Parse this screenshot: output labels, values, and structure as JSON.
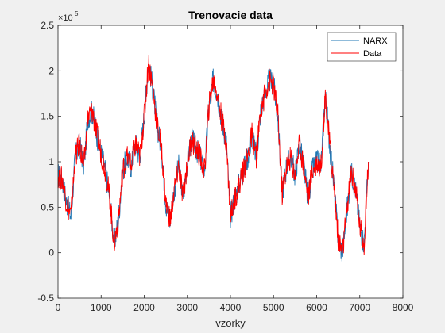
{
  "chart_data": {
    "type": "line",
    "title": "Trenovacie data",
    "xlabel": "vzorky",
    "ylabel": "",
    "y_exponent_label": "×10",
    "y_exponent_power": "5",
    "xlim": [
      0,
      8000
    ],
    "ylim": [
      -0.5,
      2.5
    ],
    "x_ticks": [
      "0",
      "1000",
      "2000",
      "3000",
      "4000",
      "5000",
      "6000",
      "7000",
      "8000"
    ],
    "y_ticks": [
      "-0.5",
      "0",
      "0.5",
      "1",
      "1.5",
      "2",
      "2.5"
    ],
    "grid": false,
    "legend_position": "top-right",
    "series": [
      {
        "name": "NARX",
        "color": "#1f77b4",
        "x": [
          0,
          100,
          200,
          300,
          400,
          500,
          600,
          700,
          800,
          900,
          1000,
          1100,
          1200,
          1300,
          1400,
          1500,
          1600,
          1700,
          1800,
          1900,
          2000,
          2100,
          2200,
          2300,
          2400,
          2500,
          2600,
          2700,
          2800,
          2900,
          3000,
          3100,
          3200,
          3300,
          3400,
          3500,
          3600,
          3700,
          3800,
          3900,
          4000,
          4100,
          4200,
          4300,
          4400,
          4500,
          4600,
          4700,
          4800,
          4900,
          5000,
          5100,
          5200,
          5300,
          5400,
          5500,
          5600,
          5700,
          5800,
          5900,
          6000,
          6100,
          6200,
          6300,
          6400,
          6500,
          6600,
          6700,
          6800,
          6900,
          7000,
          7100,
          7200
        ],
        "y": [
          0.85,
          0.8,
          0.55,
          0.4,
          1.05,
          1.2,
          0.95,
          1.5,
          1.55,
          1.3,
          1.1,
          0.9,
          0.6,
          0.1,
          0.35,
          0.9,
          1.05,
          0.95,
          1.2,
          1.05,
          1.5,
          2.1,
          1.8,
          1.4,
          1.15,
          0.55,
          0.35,
          0.7,
          0.95,
          0.6,
          1.0,
          1.25,
          1.15,
          1.05,
          0.9,
          1.6,
          1.9,
          1.75,
          1.45,
          1.25,
          0.4,
          0.6,
          0.75,
          0.9,
          1.05,
          1.3,
          1.05,
          1.55,
          1.75,
          1.9,
          1.85,
          1.5,
          0.65,
          0.95,
          1.05,
          0.85,
          1.2,
          0.95,
          0.6,
          0.9,
          1.0,
          0.95,
          1.75,
          1.2,
          0.75,
          0.15,
          0.0,
          0.45,
          0.9,
          0.7,
          0.3,
          0.1,
          1.0
        ]
      },
      {
        "name": "Data",
        "color": "#ff0000",
        "x": [
          0,
          100,
          200,
          300,
          400,
          500,
          600,
          700,
          800,
          900,
          1000,
          1100,
          1200,
          1300,
          1400,
          1500,
          1600,
          1700,
          1800,
          1900,
          2000,
          2100,
          2200,
          2300,
          2400,
          2500,
          2600,
          2700,
          2800,
          2900,
          3000,
          3100,
          3200,
          3300,
          3400,
          3500,
          3600,
          3700,
          3800,
          3900,
          4000,
          4100,
          4200,
          4300,
          4400,
          4500,
          4600,
          4700,
          4800,
          4900,
          5000,
          5100,
          5200,
          5300,
          5400,
          5500,
          5600,
          5700,
          5800,
          5900,
          6000,
          6100,
          6200,
          6300,
          6400,
          6500,
          6600,
          6700,
          6800,
          6900,
          7000,
          7100,
          7200
        ],
        "y": [
          0.85,
          0.8,
          0.55,
          0.4,
          1.05,
          1.2,
          0.95,
          1.5,
          1.55,
          1.3,
          1.1,
          0.9,
          0.6,
          0.1,
          0.35,
          0.9,
          1.05,
          0.95,
          1.2,
          1.05,
          1.5,
          2.1,
          1.8,
          1.4,
          1.15,
          0.55,
          0.35,
          0.7,
          0.95,
          0.6,
          1.0,
          1.25,
          1.15,
          1.05,
          0.9,
          1.6,
          1.9,
          1.75,
          1.45,
          1.25,
          0.4,
          0.6,
          0.75,
          0.9,
          1.05,
          1.3,
          1.05,
          1.55,
          1.75,
          1.9,
          1.85,
          1.5,
          0.65,
          0.95,
          1.05,
          0.85,
          1.2,
          0.95,
          0.6,
          0.9,
          1.0,
          0.95,
          1.75,
          1.2,
          0.75,
          0.15,
          0.0,
          0.45,
          0.9,
          0.7,
          0.3,
          0.1,
          1.0
        ]
      }
    ]
  }
}
